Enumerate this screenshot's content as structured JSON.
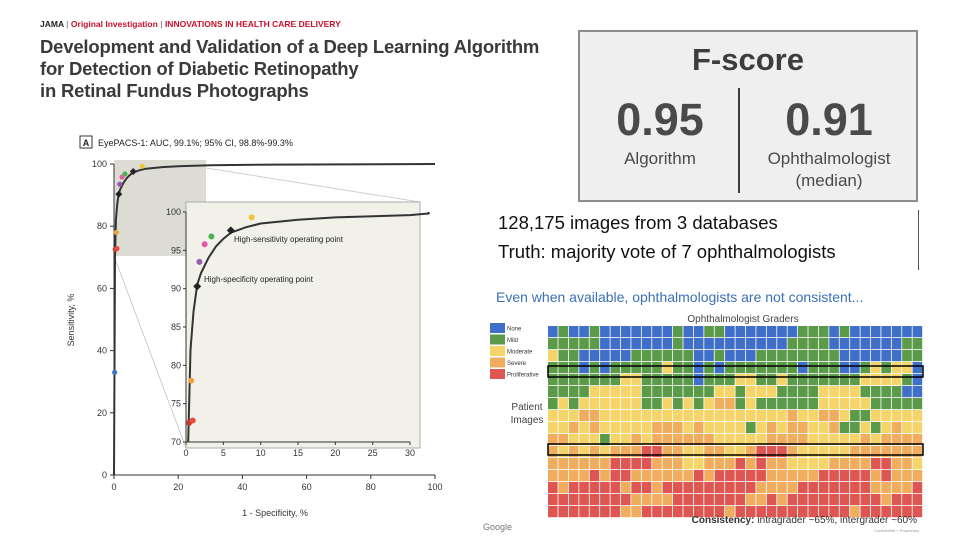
{
  "paper": {
    "header": {
      "journal": "JAMA",
      "article_type": "Original Investigation",
      "section": "INNOVATIONS IN HEALTH CARE DELIVERY"
    },
    "title_lines": [
      "Development and Validation of a Deep Learning Algorithm",
      "for Detection of Diabetic Retinopathy",
      "in Retinal Fundus Photographs"
    ]
  },
  "roc": {
    "panel_label": "A",
    "panel_title": "EyePACS-1: AUC, 99.1%; 95% CI, 98.8%-99.3%",
    "x_label": "1 - Specificity, %",
    "y_label": "Sensitivity, %",
    "x_ticks": [
      "0",
      "20",
      "40",
      "60",
      "80",
      "100"
    ],
    "y_ticks": [
      "0",
      "20",
      "40",
      "60",
      "80",
      "100"
    ],
    "inset_x_ticks": [
      "0",
      "5",
      "10",
      "15",
      "20",
      "25",
      "30"
    ],
    "inset_y_ticks": [
      "70",
      "75",
      "80",
      "85",
      "90",
      "95",
      "100"
    ],
    "annotation_high_sensitivity": "High-sensitivity operating point",
    "annotation_high_specificity": "High-specificity operating point",
    "colors": {
      "curve": "#333333",
      "inset_bg": "#f1f1ea"
    }
  },
  "chart_data": {
    "type": "line",
    "title": "EyePACS-1: AUC, 99.1%; 95% CI, 98.8%-99.3%",
    "xlabel": "1 - Specificity, %",
    "ylabel": "Sensitivity, %",
    "xlim": [
      0,
      100
    ],
    "ylim": [
      0,
      100
    ],
    "inset": {
      "xlim": [
        0,
        30
      ],
      "ylim": [
        70,
        100
      ]
    },
    "series": [
      {
        "name": "Algorithm ROC curve",
        "x": [
          0,
          0.3,
          0.6,
          1,
          1.5,
          2,
          3,
          4,
          5,
          6,
          8,
          10,
          15,
          20,
          30,
          50,
          100
        ],
        "y": [
          0,
          70,
          82,
          87,
          90.5,
          92,
          94,
          95.5,
          96.5,
          97.3,
          98,
          98.5,
          99,
          99.3,
          99.6,
          99.8,
          100
        ]
      }
    ],
    "operating_points": [
      {
        "name": "High-sensitivity operating point",
        "x": 6.0,
        "y": 97.6
      },
      {
        "name": "High-specificity operating point",
        "x": 1.5,
        "y": 90.3
      }
    ],
    "ophthalmologists": [
      {
        "x": 0.2,
        "y": 33,
        "color": "#3b77c2",
        "inset": false
      },
      {
        "x": 0.4,
        "y": 72.5,
        "color": "#c0392b"
      },
      {
        "x": 0.9,
        "y": 72.8,
        "color": "#e74c3c"
      },
      {
        "x": 0.7,
        "y": 78,
        "color": "#f0a03c"
      },
      {
        "x": 1.8,
        "y": 93.5,
        "color": "#9b59b6"
      },
      {
        "x": 2.5,
        "y": 95.8,
        "color": "#e05aa6"
      },
      {
        "x": 3.4,
        "y": 96.8,
        "color": "#4fb053"
      },
      {
        "x": 8.8,
        "y": 99.3,
        "color": "#f3c13a"
      }
    ]
  },
  "fscore": {
    "title": "F-score",
    "algorithm_value": "0.95",
    "algorithm_label": "Algorithm",
    "ophthalmologist_value": "0.91",
    "ophthalmologist_label": "Ophthalmologist",
    "ophthalmologist_sublabel": "(median)"
  },
  "dataset": {
    "line1": "128,175 images from 3 databases",
    "line2": "Truth: majority vote of 7 ophthalmologists"
  },
  "heatmap": {
    "caption": "Even when available, ophthalmologists are not consistent...",
    "title": "Ophthalmologist Graders",
    "row_label_1": "Patient",
    "row_label_2": "Images",
    "legend": [
      {
        "label": "None",
        "color": "#3f6fc9"
      },
      {
        "label": "Mild",
        "color": "#5b9a48"
      },
      {
        "label": "Moderate",
        "color": "#f5d46a"
      },
      {
        "label": "Severe",
        "color": "#f1ad5e"
      },
      {
        "label": "Proliferative",
        "color": "#de5651"
      }
    ],
    "consistency_label": "Consistency:",
    "consistency_value": "intragrader ~65%, intergrader ~60%"
  },
  "footer": {
    "google": "Google",
    "confidential": "Confidential + Proprietary"
  }
}
